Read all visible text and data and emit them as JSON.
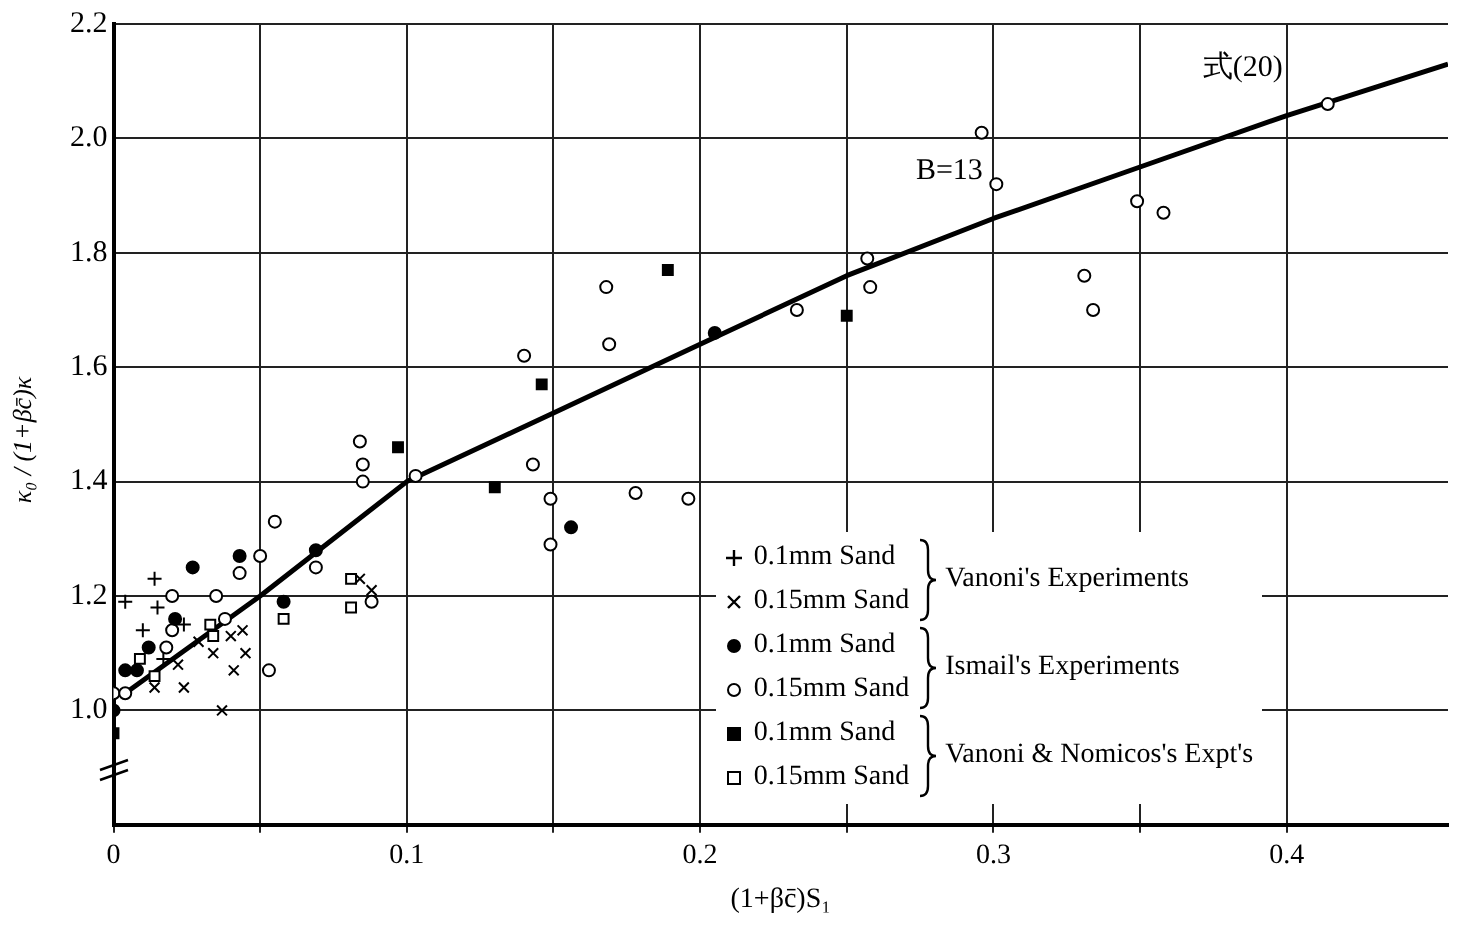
{
  "chart_data": {
    "type": "scatter",
    "xlabel": "(1+βc̄)S₁",
    "ylabel": "κ₀ / (1+βc̄)κ",
    "xlim": [
      0,
      0.455
    ],
    "xticks": [
      0,
      {
        "value": 0.05,
        "label": null
      },
      0.1,
      {
        "value": 0.15,
        "label": null
      },
      0.2,
      {
        "value": 0.25,
        "label": null
      },
      0.3,
      {
        "value": 0.35,
        "label": null
      },
      0.4
    ],
    "ylim": [
      0.8,
      2.2
    ],
    "yticks": [
      {
        "value": 1.0,
        "label": "1.0"
      },
      1.2,
      1.4,
      1.6,
      1.8,
      {
        "value": 2.0,
        "label": "2.0"
      },
      2.2
    ],
    "grid": true,
    "legend": "bottom right",
    "annotations": [
      {
        "text": "式(20)",
        "x": 0.4,
        "y": 2.04
      },
      {
        "text": "B=13",
        "x": 0.3,
        "y": 1.86
      },
      "Vanoni's Experiments",
      "Ismail's Experiments",
      "Vanoni & Nomicos's Expt's"
    ],
    "series": [
      {
        "name": "0.1mm Sand",
        "color": "#000000",
        "marker": "cross",
        "x": [
          0.004,
          0.014,
          0.015,
          0.01,
          0.024,
          0.017
        ],
        "values": [
          1.19,
          1.23,
          1.18,
          1.14,
          1.15,
          1.09
        ]
      },
      {
        "name": "0.15mm Sand",
        "color": "#000000",
        "marker": "x",
        "x": [
          0.014,
          0.024,
          0.022,
          0.029,
          0.034,
          0.04,
          0.044,
          0.045,
          0.041,
          0.037,
          0.084,
          0.088
        ],
        "values": [
          1.04,
          1.04,
          1.08,
          1.12,
          1.1,
          1.13,
          1.14,
          1.1,
          1.07,
          1.0,
          1.23,
          1.21
        ]
      },
      {
        "name": "0.1mm Sand",
        "color": "#000000",
        "marker": "circle",
        "x": [
          0,
          0.004,
          0.008,
          0.012,
          0.021,
          0.027,
          0.043,
          0.058,
          0.069,
          0.156,
          0.205
        ],
        "values": [
          1.0,
          1.07,
          1.07,
          1.11,
          1.16,
          1.25,
          1.27,
          1.19,
          1.28,
          1.32,
          1.66
        ]
      },
      {
        "name": "0.15mm Sand",
        "color": "#000000",
        "marker": "circle-open",
        "x": [
          0,
          0.004,
          0.018,
          0.02,
          0.02,
          0.035,
          0.038,
          0.043,
          0.05,
          0.055,
          0.053,
          0.069,
          0.085,
          0.088,
          0.084,
          0.085,
          0.103,
          0.14,
          0.168,
          0.169,
          0.143,
          0.149,
          0.149,
          0.178,
          0.196,
          0.233,
          0.257,
          0.258,
          0.296,
          0.301,
          0.349,
          0.358,
          0.331,
          0.334,
          0.414
        ],
        "values": [
          1.03,
          1.03,
          1.11,
          1.2,
          1.14,
          1.2,
          1.16,
          1.24,
          1.27,
          1.33,
          1.07,
          1.25,
          1.4,
          1.19,
          1.47,
          1.43,
          1.41,
          1.62,
          1.74,
          1.64,
          1.43,
          1.37,
          1.29,
          1.38,
          1.37,
          1.7,
          1.79,
          1.74,
          2.01,
          1.92,
          1.89,
          1.87,
          1.76,
          1.7,
          2.06
        ]
      },
      {
        "name": "0.1mm Sand",
        "color": "#000000",
        "marker": "square",
        "x": [
          0,
          0.097,
          0.146,
          0.13,
          0.189,
          0.25
        ],
        "values": [
          0.96,
          1.46,
          1.57,
          1.39,
          1.77,
          1.69
        ]
      },
      {
        "name": "0.15mm Sand",
        "color": "#000000",
        "marker": "square-open",
        "x": [
          0.009,
          0.014,
          0.033,
          0.034,
          0.058,
          0.081,
          0.081
        ],
        "values": [
          1.09,
          1.06,
          1.15,
          1.13,
          1.16,
          1.23,
          1.18
        ]
      },
      {
        "type": "line",
        "color": "#000000",
        "marker": "none",
        "x": [
          0.004,
          0.05,
          0.1,
          0.15,
          0.2,
          0.25,
          0.3,
          0.35,
          0.4,
          0.455
        ],
        "values": [
          1.03,
          1.2,
          1.4,
          1.52,
          1.64,
          1.76,
          1.86,
          1.95,
          2.04,
          2.13
        ]
      }
    ]
  }
}
